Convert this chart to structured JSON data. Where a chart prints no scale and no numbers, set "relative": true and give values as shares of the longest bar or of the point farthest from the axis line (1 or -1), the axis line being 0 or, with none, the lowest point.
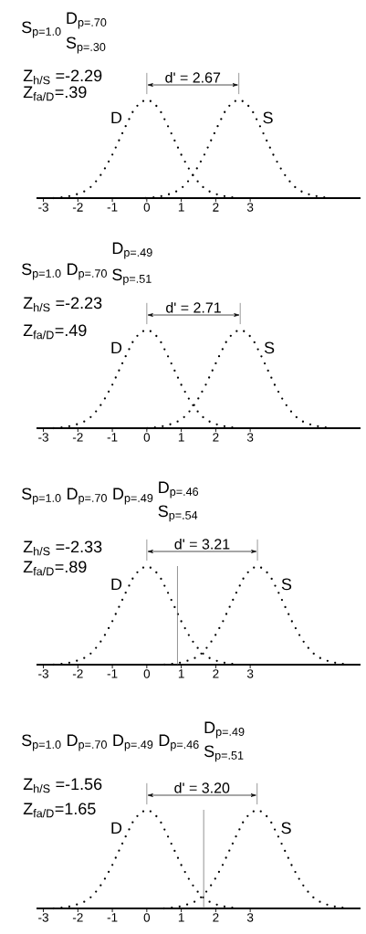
{
  "chart_data": [
    {
      "type": "line",
      "relative": true,
      "title": "S$_{p=1.0}$",
      "annotations": [
        "D$_{p=.70}$",
        "S$_{p=.30}$",
        "Z$_{h/S}$ =-2.29",
        "Z$_{fa/D}$=.39",
        "d' = 2.67"
      ],
      "xlim": [
        -3.2,
        6.2
      ],
      "xticks": [
        -3,
        -2,
        -1,
        0,
        1,
        2,
        3
      ],
      "line_style": "dotted",
      "marker": "none",
      "series": [
        {
          "name": "D",
          "color": "#000000",
          "x": [
            -2.7,
            -2.4,
            -2.1,
            -1.8,
            -1.6,
            -1.4,
            -1.2,
            -1,
            -0.8,
            -0.6,
            -0.4,
            -0.2,
            0,
            0.2,
            0.4,
            0.6,
            0.8,
            1,
            1.2,
            1.4,
            1.6,
            1.8,
            2.1,
            2.4,
            2.7
          ],
          "values": [
            0,
            0.01,
            0.03,
            0.07,
            0.12,
            0.2,
            0.31,
            0.44,
            0.59,
            0.74,
            0.88,
            0.97,
            1,
            0.97,
            0.88,
            0.74,
            0.59,
            0.44,
            0.31,
            0.2,
            0.12,
            0.07,
            0.03,
            0.01,
            0
          ]
        },
        {
          "name": "S",
          "color": "#000000",
          "x": [
            -0.03,
            0.27,
            0.57,
            0.87,
            1.07,
            1.27,
            1.47,
            1.67,
            1.87,
            2.07,
            2.27,
            2.47,
            2.67,
            2.87,
            3.07,
            3.27,
            3.47,
            3.67,
            3.87,
            4.07,
            4.27,
            4.47,
            4.77,
            5.07,
            5.37
          ],
          "values": [
            0,
            0.01,
            0.03,
            0.07,
            0.12,
            0.2,
            0.31,
            0.44,
            0.59,
            0.74,
            0.88,
            0.97,
            1,
            0.97,
            0.88,
            0.74,
            0.59,
            0.44,
            0.31,
            0.2,
            0.12,
            0.07,
            0.03,
            0.01,
            0
          ]
        }
      ]
    },
    {
      "type": "line",
      "relative": true,
      "title": "S$_{p=1.0}$ D$_{p=.70}$",
      "annotations": [
        "D$_{p=.49}$",
        "S$_{p=.51}$",
        "Z$_{h/S}$ =-2.23",
        "Z$_{fa/D}$=.49",
        "d' = 2.71"
      ],
      "xlim": [
        -3.2,
        6.2
      ],
      "xticks": [
        -3,
        -2,
        -1,
        0,
        1,
        2,
        3
      ],
      "line_style": "dotted",
      "marker": "none",
      "series": [
        {
          "name": "D",
          "color": "#000000",
          "x": [
            -2.7,
            -2.4,
            -2.1,
            -1.8,
            -1.6,
            -1.4,
            -1.2,
            -1,
            -0.8,
            -0.6,
            -0.4,
            -0.2,
            0,
            0.2,
            0.4,
            0.6,
            0.8,
            1,
            1.2,
            1.4,
            1.6,
            1.8,
            2.1,
            2.4,
            2.7
          ],
          "values": [
            0,
            0.01,
            0.03,
            0.07,
            0.12,
            0.2,
            0.31,
            0.44,
            0.59,
            0.74,
            0.88,
            0.97,
            1,
            0.97,
            0.88,
            0.74,
            0.59,
            0.44,
            0.31,
            0.2,
            0.12,
            0.07,
            0.03,
            0.01,
            0
          ]
        },
        {
          "name": "S",
          "color": "#000000",
          "x": [
            0.01,
            0.31,
            0.61,
            0.91,
            1.11,
            1.31,
            1.51,
            1.71,
            1.91,
            2.11,
            2.31,
            2.51,
            2.71,
            2.91,
            3.11,
            3.31,
            3.51,
            3.71,
            3.91,
            4.11,
            4.31,
            4.51,
            4.81,
            5.11,
            5.41
          ],
          "values": [
            0,
            0.01,
            0.03,
            0.07,
            0.12,
            0.2,
            0.31,
            0.44,
            0.59,
            0.74,
            0.88,
            0.97,
            1,
            0.97,
            0.88,
            0.74,
            0.59,
            0.44,
            0.31,
            0.2,
            0.12,
            0.07,
            0.03,
            0.01,
            0
          ]
        }
      ]
    },
    {
      "type": "line",
      "relative": true,
      "title": "S$_{p=1.0}$ D$_{p=.70}$ D$_{p=.49}$",
      "annotations": [
        "D$_{p=.46}$",
        "S$_{p=.54}$",
        "Z$_{h/S}$ =-2.33",
        "Z$_{fa/D}$=.89",
        "d' = 3.21"
      ],
      "xlim": [
        -3.2,
        6.2
      ],
      "xticks": [
        -3,
        -2,
        -1,
        0,
        1,
        2,
        3
      ],
      "line_style": "dotted",
      "marker": "none",
      "ref_lines": [
        {
          "axis": "x",
          "value": 0.89,
          "color": "#666666"
        }
      ],
      "series": [
        {
          "name": "D",
          "color": "#000000",
          "x": [
            -2.7,
            -2.4,
            -2.1,
            -1.8,
            -1.6,
            -1.4,
            -1.2,
            -1,
            -0.8,
            -0.6,
            -0.4,
            -0.2,
            0,
            0.2,
            0.4,
            0.6,
            0.8,
            1,
            1.2,
            1.4,
            1.6,
            1.8,
            2.1,
            2.4,
            2.7
          ],
          "values": [
            0,
            0.01,
            0.03,
            0.07,
            0.12,
            0.2,
            0.31,
            0.44,
            0.59,
            0.74,
            0.88,
            0.97,
            1,
            0.97,
            0.88,
            0.74,
            0.59,
            0.44,
            0.31,
            0.2,
            0.12,
            0.07,
            0.03,
            0.01,
            0
          ]
        },
        {
          "name": "S",
          "color": "#000000",
          "x": [
            0.51,
            0.81,
            1.11,
            1.41,
            1.61,
            1.81,
            2.01,
            2.21,
            2.41,
            2.61,
            2.81,
            3.01,
            3.21,
            3.41,
            3.61,
            3.81,
            4.01,
            4.21,
            4.41,
            4.61,
            4.81,
            5.01,
            5.31,
            5.61,
            5.91
          ],
          "values": [
            0,
            0.01,
            0.03,
            0.07,
            0.12,
            0.2,
            0.31,
            0.44,
            0.59,
            0.74,
            0.88,
            0.97,
            1,
            0.97,
            0.88,
            0.74,
            0.59,
            0.44,
            0.31,
            0.2,
            0.12,
            0.07,
            0.03,
            0.01,
            0
          ]
        }
      ]
    },
    {
      "type": "line",
      "relative": true,
      "title": "S$_{p=1.0}$ D$_{p=.70}$ D$_{p=.49}$ D$_{p=.46}$",
      "annotations": [
        "D$_{p=.49}$",
        "S$_{p=.51}$",
        "Z$_{h/S}$ =-1.56",
        "Z$_{fa/D}$=1.65",
        "d' = 3.20"
      ],
      "xlim": [
        -3.2,
        6.2
      ],
      "xticks": [
        -3,
        -2,
        -1,
        0,
        1,
        2,
        3
      ],
      "line_style": "dotted",
      "marker": "none",
      "ref_lines": [
        {
          "axis": "x",
          "value": 1.65,
          "color": "#666666"
        }
      ],
      "series": [
        {
          "name": "D",
          "color": "#000000",
          "x": [
            -2.7,
            -2.4,
            -2.1,
            -1.8,
            -1.6,
            -1.4,
            -1.2,
            -1,
            -0.8,
            -0.6,
            -0.4,
            -0.2,
            0,
            0.2,
            0.4,
            0.6,
            0.8,
            1,
            1.2,
            1.4,
            1.6,
            1.8,
            2.1,
            2.4,
            2.7
          ],
          "values": [
            0,
            0.01,
            0.03,
            0.07,
            0.12,
            0.2,
            0.31,
            0.44,
            0.59,
            0.74,
            0.88,
            0.97,
            1,
            0.97,
            0.88,
            0.74,
            0.59,
            0.44,
            0.31,
            0.2,
            0.12,
            0.07,
            0.03,
            0.01,
            0
          ]
        },
        {
          "name": "S",
          "color": "#000000",
          "x": [
            0.5,
            0.8,
            1.1,
            1.4,
            1.6,
            1.8,
            2,
            2.2,
            2.4,
            2.6,
            2.8,
            3,
            3.2,
            3.4,
            3.6,
            3.8,
            4,
            4.2,
            4.4,
            4.6,
            4.8,
            5,
            5.3,
            5.6,
            5.9
          ],
          "values": [
            0,
            0.01,
            0.03,
            0.07,
            0.12,
            0.2,
            0.31,
            0.44,
            0.59,
            0.74,
            0.88,
            0.97,
            1,
            0.97,
            0.88,
            0.74,
            0.59,
            0.44,
            0.31,
            0.2,
            0.12,
            0.07,
            0.03,
            0.01,
            0
          ]
        }
      ]
    }
  ]
}
